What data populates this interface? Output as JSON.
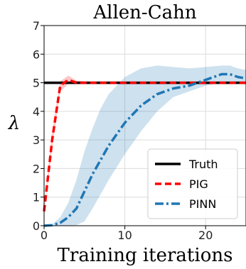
{
  "chart_data": {
    "type": "line",
    "title": "Allen-Cahn",
    "xlabel": "Training iterations",
    "ylabel": "λ",
    "xlim": [
      0,
      25
    ],
    "ylim": [
      0,
      7
    ],
    "xticks": [
      0,
      10,
      20
    ],
    "yticks": [
      0,
      1,
      2,
      3,
      4,
      5,
      6,
      7
    ],
    "grid": true,
    "legend_position": "lower right",
    "series": [
      {
        "name": "Truth",
        "color": "#000000",
        "style": "solid",
        "x": [
          0,
          25
        ],
        "y": [
          5,
          5
        ]
      },
      {
        "name": "PIG",
        "color": "#ff0000",
        "style": "dashed",
        "x": [
          0,
          1,
          2,
          3,
          4,
          6,
          10,
          15,
          20,
          25
        ],
        "y": [
          0.5,
          3.0,
          4.9,
          5.1,
          5.0,
          5.0,
          5.0,
          5.0,
          5.0,
          5.0
        ],
        "band_lower": [
          0.4,
          2.7,
          4.7,
          4.95,
          4.95,
          4.97,
          4.98,
          4.98,
          4.98,
          4.98
        ],
        "band_upper": [
          0.6,
          3.3,
          5.05,
          5.25,
          5.08,
          5.03,
          5.02,
          5.02,
          5.02,
          5.02
        ]
      },
      {
        "name": "PINN",
        "color": "#1f77b4",
        "style": "dashdot",
        "x": [
          0,
          1,
          2,
          3,
          4,
          5,
          6,
          7,
          8,
          10,
          12,
          14,
          16,
          18,
          20,
          22,
          23,
          24,
          25
        ],
        "y": [
          0,
          0.02,
          0.1,
          0.3,
          0.6,
          1.2,
          1.8,
          2.3,
          2.8,
          3.6,
          4.2,
          4.6,
          4.8,
          4.9,
          5.1,
          5.3,
          5.3,
          5.2,
          5.15
        ],
        "band_lower": [
          0,
          0,
          0,
          0,
          0.02,
          0.15,
          0.6,
          1.1,
          1.6,
          2.5,
          3.3,
          4.0,
          4.5,
          4.7,
          4.9,
          5.0,
          5.0,
          5.0,
          4.95
        ],
        "band_upper": [
          0,
          0.05,
          0.3,
          0.8,
          1.6,
          2.6,
          3.4,
          4.1,
          4.6,
          5.2,
          5.5,
          5.6,
          5.55,
          5.5,
          5.55,
          5.6,
          5.6,
          5.5,
          5.45
        ]
      }
    ]
  }
}
